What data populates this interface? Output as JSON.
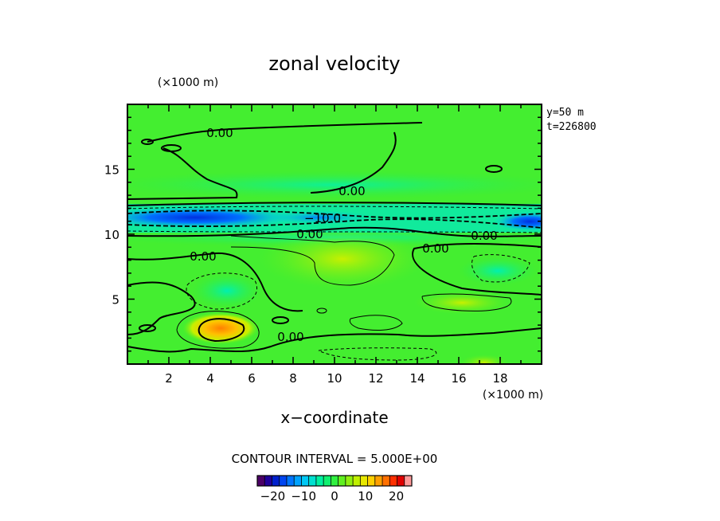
{
  "chart_data": {
    "type": "heatmap",
    "title": "zonal velocity",
    "xlabel": "x−coordinate",
    "x_unit": "(×1000 m)",
    "y_unit": "(×1000 m)",
    "xlim": [
      0,
      20
    ],
    "ylim": [
      0,
      20
    ],
    "x_ticks": [
      "2",
      "4",
      "6",
      "8",
      "10",
      "12",
      "14",
      "16",
      "18"
    ],
    "y_ticks": [
      "5",
      "10",
      "15"
    ],
    "info_lines": [
      "y=50  m",
      "t=226800"
    ],
    "contour_interval_text": "CONTOUR INTERVAL = 5.000E+00",
    "contour_labels": [
      "0.00",
      "0.00",
      "−10.0",
      "0.00",
      "0.00",
      "0.00",
      "0.00",
      "0.00"
    ],
    "colorbar": {
      "range": [
        -25,
        25
      ],
      "tick_labels": [
        "−20",
        "−10",
        "0",
        "10",
        "20"
      ],
      "colors": [
        "#4b0066",
        "#200099",
        "#0020cc",
        "#0045f0",
        "#0075ff",
        "#00a2ff",
        "#00c8f5",
        "#00e0d0",
        "#00f0a0",
        "#10f070",
        "#30f040",
        "#60f020",
        "#90f010",
        "#c0f000",
        "#e8e800",
        "#ffd000",
        "#ffa000",
        "#ff7000",
        "#ff3000",
        "#e00000",
        "#ff9999"
      ]
    },
    "features": [
      {
        "name": "negative jet",
        "x_range": [
          0,
          20
        ],
        "y_center": 11.1,
        "value": -17
      },
      {
        "name": "positive core",
        "x": 4.6,
        "y": 2.7,
        "value": 14
      },
      {
        "name": "positive band",
        "x_range": [
          6,
          14
        ],
        "y_range": [
          6.5,
          10
        ],
        "value": 6
      }
    ]
  }
}
